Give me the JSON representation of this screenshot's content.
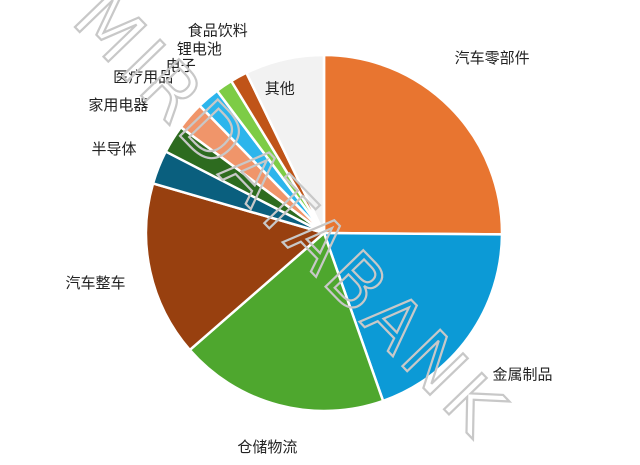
{
  "chart_data": {
    "type": "pie",
    "slices": [
      {
        "label": "汽车零部件",
        "value": 24.5,
        "color": "#e87530"
      },
      {
        "label": "金属制品",
        "value": 19.0,
        "color": "#0c9ad6"
      },
      {
        "label": "仓储物流",
        "value": 18.5,
        "color": "#4ea72e"
      },
      {
        "label": "汽车整车",
        "value": 15.5,
        "color": "#98400f"
      },
      {
        "label": "半导体",
        "value": 3.0,
        "color": "#0a5f7e"
      },
      {
        "label": "家用电器",
        "value": 2.5,
        "color": "#2d6b1f"
      },
      {
        "label": "医疗用品",
        "value": 2.5,
        "color": "#f0956a"
      },
      {
        "label": "电子",
        "value": 2.0,
        "color": "#2cb5ec"
      },
      {
        "label": "锂电池",
        "value": 1.5,
        "color": "#7dcc46"
      },
      {
        "label": "食品饮料",
        "value": 1.5,
        "color": "#c05418"
      },
      {
        "label": "其他",
        "value": 7.0,
        "color": "#f2f2f2"
      }
    ]
  },
  "watermark": "MIRDATABANK"
}
